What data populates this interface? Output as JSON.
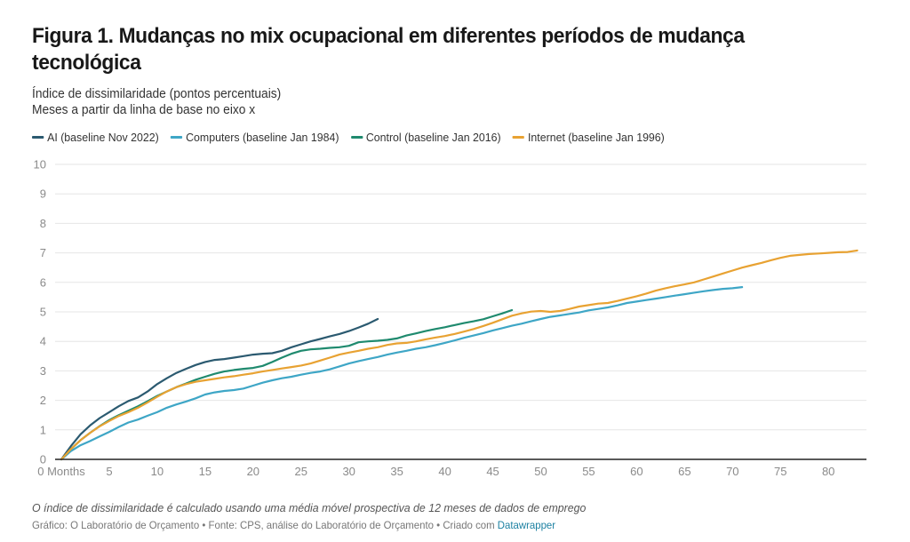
{
  "header": {
    "title": "Figura 1. Mudanças no mix ocupacional em diferentes períodos de mudança tecnológica",
    "subtitle_line1": "Índice de dissimilaridade (pontos percentuais)",
    "subtitle_line2": "Meses a partir da linha de base no eixo x"
  },
  "footer": {
    "note": "O índice de dissimilaridade é calculado usando uma média móvel prospectiva de 12 meses de dados de emprego",
    "source_prefix": "Gráfico: O Laboratório de Orçamento • Fonte: CPS, análise do Laboratório de Orçamento • Criado com ",
    "source_link": "Datawrapper"
  },
  "chart_data": {
    "type": "line",
    "title": "Figura 1. Mudanças no mix ocupacional em diferentes períodos de mudança tecnológica",
    "subtitle": "Índice de dissimilaridade (pontos percentuais); Meses a partir da linha de base no eixo x",
    "xlabel": "Months",
    "ylabel": "Índice de dissimilaridade (pontos percentuais)",
    "xlim": [
      0,
      84
    ],
    "ylim": [
      0,
      10
    ],
    "x_ticks": [
      0,
      5,
      10,
      15,
      20,
      25,
      30,
      35,
      40,
      45,
      50,
      55,
      60,
      65,
      70,
      75,
      80
    ],
    "x_tick_labels": [
      "0 Months",
      "5",
      "10",
      "15",
      "20",
      "25",
      "30",
      "35",
      "40",
      "45",
      "50",
      "55",
      "60",
      "65",
      "70",
      "75",
      "80"
    ],
    "y_ticks": [
      0,
      1,
      2,
      3,
      4,
      5,
      6,
      7,
      8,
      9,
      10
    ],
    "y_tick_labels": [
      "0",
      "1",
      "2",
      "3",
      "4",
      "5",
      "6",
      "7",
      "8",
      "9",
      "10"
    ],
    "grid": true,
    "legend_position": "top-left",
    "series": [
      {
        "name": "AI (baseline Nov 2022)",
        "color": "#2b5a70",
        "points": [
          [
            0,
            0
          ],
          [
            1,
            0.45
          ],
          [
            2,
            0.85
          ],
          [
            3,
            1.15
          ],
          [
            4,
            1.4
          ],
          [
            5,
            1.6
          ],
          [
            6,
            1.8
          ],
          [
            7,
            1.98
          ],
          [
            8,
            2.1
          ],
          [
            9,
            2.3
          ],
          [
            10,
            2.55
          ],
          [
            11,
            2.75
          ],
          [
            12,
            2.93
          ],
          [
            13,
            3.07
          ],
          [
            14,
            3.2
          ],
          [
            15,
            3.3
          ],
          [
            16,
            3.37
          ],
          [
            17,
            3.4
          ],
          [
            18,
            3.45
          ],
          [
            19,
            3.5
          ],
          [
            20,
            3.55
          ],
          [
            21,
            3.58
          ],
          [
            22,
            3.6
          ],
          [
            23,
            3.68
          ],
          [
            24,
            3.8
          ],
          [
            25,
            3.9
          ],
          [
            26,
            4.0
          ],
          [
            27,
            4.08
          ],
          [
            28,
            4.17
          ],
          [
            29,
            4.25
          ],
          [
            30,
            4.35
          ],
          [
            31,
            4.47
          ],
          [
            32,
            4.6
          ],
          [
            33,
            4.76
          ]
        ]
      },
      {
        "name": "Computers (baseline Jan 1984)",
        "color": "#3ea6c6",
        "points": [
          [
            0,
            0
          ],
          [
            1,
            0.28
          ],
          [
            2,
            0.48
          ],
          [
            3,
            0.62
          ],
          [
            4,
            0.78
          ],
          [
            5,
            0.93
          ],
          [
            6,
            1.1
          ],
          [
            7,
            1.25
          ],
          [
            8,
            1.35
          ],
          [
            9,
            1.48
          ],
          [
            10,
            1.6
          ],
          [
            11,
            1.75
          ],
          [
            12,
            1.86
          ],
          [
            13,
            1.96
          ],
          [
            14,
            2.07
          ],
          [
            15,
            2.2
          ],
          [
            16,
            2.27
          ],
          [
            17,
            2.32
          ],
          [
            18,
            2.35
          ],
          [
            19,
            2.4
          ],
          [
            20,
            2.5
          ],
          [
            21,
            2.6
          ],
          [
            22,
            2.68
          ],
          [
            23,
            2.75
          ],
          [
            24,
            2.8
          ],
          [
            25,
            2.87
          ],
          [
            26,
            2.93
          ],
          [
            27,
            2.98
          ],
          [
            28,
            3.05
          ],
          [
            29,
            3.15
          ],
          [
            30,
            3.25
          ],
          [
            31,
            3.33
          ],
          [
            32,
            3.4
          ],
          [
            33,
            3.47
          ],
          [
            34,
            3.55
          ],
          [
            35,
            3.62
          ],
          [
            36,
            3.68
          ],
          [
            37,
            3.75
          ],
          [
            38,
            3.8
          ],
          [
            39,
            3.87
          ],
          [
            40,
            3.95
          ],
          [
            41,
            4.03
          ],
          [
            42,
            4.12
          ],
          [
            43,
            4.2
          ],
          [
            44,
            4.28
          ],
          [
            45,
            4.37
          ],
          [
            46,
            4.45
          ],
          [
            47,
            4.53
          ],
          [
            48,
            4.6
          ],
          [
            49,
            4.68
          ],
          [
            50,
            4.76
          ],
          [
            51,
            4.83
          ],
          [
            52,
            4.88
          ],
          [
            53,
            4.93
          ],
          [
            54,
            4.98
          ],
          [
            55,
            5.05
          ],
          [
            56,
            5.1
          ],
          [
            57,
            5.15
          ],
          [
            58,
            5.22
          ],
          [
            59,
            5.3
          ],
          [
            60,
            5.35
          ],
          [
            61,
            5.4
          ],
          [
            62,
            5.45
          ],
          [
            63,
            5.5
          ],
          [
            64,
            5.55
          ],
          [
            65,
            5.6
          ],
          [
            66,
            5.65
          ],
          [
            67,
            5.7
          ],
          [
            68,
            5.74
          ],
          [
            69,
            5.78
          ],
          [
            70,
            5.8
          ],
          [
            71,
            5.84
          ]
        ]
      },
      {
        "name": "Control (baseline Jan 2016)",
        "color": "#1f8a6e",
        "points": [
          [
            0,
            0
          ],
          [
            1,
            0.35
          ],
          [
            2,
            0.65
          ],
          [
            3,
            0.9
          ],
          [
            4,
            1.13
          ],
          [
            5,
            1.33
          ],
          [
            6,
            1.5
          ],
          [
            7,
            1.65
          ],
          [
            8,
            1.8
          ],
          [
            9,
            1.97
          ],
          [
            10,
            2.15
          ],
          [
            11,
            2.3
          ],
          [
            12,
            2.45
          ],
          [
            13,
            2.57
          ],
          [
            14,
            2.7
          ],
          [
            15,
            2.8
          ],
          [
            16,
            2.9
          ],
          [
            17,
            2.98
          ],
          [
            18,
            3.03
          ],
          [
            19,
            3.07
          ],
          [
            20,
            3.1
          ],
          [
            21,
            3.17
          ],
          [
            22,
            3.3
          ],
          [
            23,
            3.45
          ],
          [
            24,
            3.58
          ],
          [
            25,
            3.68
          ],
          [
            26,
            3.73
          ],
          [
            27,
            3.75
          ],
          [
            28,
            3.78
          ],
          [
            29,
            3.8
          ],
          [
            30,
            3.85
          ],
          [
            31,
            3.97
          ],
          [
            32,
            4.0
          ],
          [
            33,
            4.02
          ],
          [
            34,
            4.05
          ],
          [
            35,
            4.1
          ],
          [
            36,
            4.2
          ],
          [
            37,
            4.27
          ],
          [
            38,
            4.35
          ],
          [
            39,
            4.42
          ],
          [
            40,
            4.48
          ],
          [
            41,
            4.55
          ],
          [
            42,
            4.62
          ],
          [
            43,
            4.68
          ],
          [
            44,
            4.75
          ],
          [
            45,
            4.85
          ],
          [
            46,
            4.95
          ],
          [
            47,
            5.06
          ]
        ]
      },
      {
        "name": "Internet (baseline Jan 1996)",
        "color": "#e8a232",
        "points": [
          [
            0,
            0
          ],
          [
            1,
            0.35
          ],
          [
            2,
            0.65
          ],
          [
            3,
            0.9
          ],
          [
            4,
            1.12
          ],
          [
            5,
            1.3
          ],
          [
            6,
            1.47
          ],
          [
            7,
            1.6
          ],
          [
            8,
            1.75
          ],
          [
            9,
            1.93
          ],
          [
            10,
            2.12
          ],
          [
            11,
            2.3
          ],
          [
            12,
            2.45
          ],
          [
            13,
            2.55
          ],
          [
            14,
            2.63
          ],
          [
            15,
            2.68
          ],
          [
            16,
            2.73
          ],
          [
            17,
            2.78
          ],
          [
            18,
            2.82
          ],
          [
            19,
            2.87
          ],
          [
            20,
            2.92
          ],
          [
            21,
            2.98
          ],
          [
            22,
            3.03
          ],
          [
            23,
            3.08
          ],
          [
            24,
            3.13
          ],
          [
            25,
            3.18
          ],
          [
            26,
            3.25
          ],
          [
            27,
            3.35
          ],
          [
            28,
            3.45
          ],
          [
            29,
            3.55
          ],
          [
            30,
            3.62
          ],
          [
            31,
            3.68
          ],
          [
            32,
            3.75
          ],
          [
            33,
            3.8
          ],
          [
            34,
            3.88
          ],
          [
            35,
            3.93
          ],
          [
            36,
            3.95
          ],
          [
            37,
            4.0
          ],
          [
            38,
            4.07
          ],
          [
            39,
            4.13
          ],
          [
            40,
            4.18
          ],
          [
            41,
            4.25
          ],
          [
            42,
            4.33
          ],
          [
            43,
            4.42
          ],
          [
            44,
            4.52
          ],
          [
            45,
            4.63
          ],
          [
            46,
            4.75
          ],
          [
            47,
            4.87
          ],
          [
            48,
            4.95
          ],
          [
            49,
            5.01
          ],
          [
            50,
            5.03
          ],
          [
            51,
            5.0
          ],
          [
            52,
            5.03
          ],
          [
            53,
            5.1
          ],
          [
            54,
            5.18
          ],
          [
            55,
            5.23
          ],
          [
            56,
            5.28
          ],
          [
            57,
            5.3
          ],
          [
            58,
            5.37
          ],
          [
            59,
            5.45
          ],
          [
            60,
            5.53
          ],
          [
            61,
            5.62
          ],
          [
            62,
            5.72
          ],
          [
            63,
            5.8
          ],
          [
            64,
            5.87
          ],
          [
            65,
            5.93
          ],
          [
            66,
            6.0
          ],
          [
            67,
            6.1
          ],
          [
            68,
            6.2
          ],
          [
            69,
            6.3
          ],
          [
            70,
            6.4
          ],
          [
            71,
            6.5
          ],
          [
            72,
            6.58
          ],
          [
            73,
            6.66
          ],
          [
            74,
            6.75
          ],
          [
            75,
            6.83
          ],
          [
            76,
            6.9
          ],
          [
            77,
            6.93
          ],
          [
            78,
            6.96
          ],
          [
            79,
            6.98
          ],
          [
            80,
            7.0
          ],
          [
            81,
            7.02
          ],
          [
            82,
            7.03
          ],
          [
            83,
            7.08
          ]
        ]
      }
    ]
  }
}
